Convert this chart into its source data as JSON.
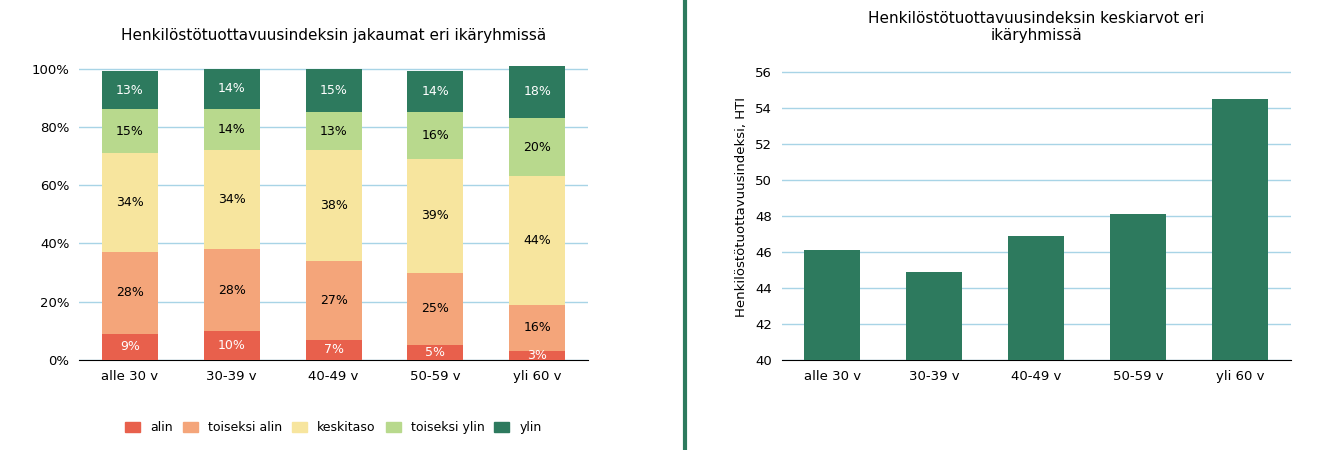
{
  "left_title": "Henkilöstötuottavuusindeksin jakaumat eri ikäryhmissä",
  "right_title": "Henkilöstötuottavuusindeksin keskiarvot eri\nikäryhmissä",
  "categories": [
    "alle 30 v",
    "30-39 v",
    "40-49 v",
    "50-59 v",
    "yli 60 v"
  ],
  "stacked_data": {
    "alin": [
      9,
      10,
      7,
      5,
      3
    ],
    "toiseksi alin": [
      28,
      28,
      27,
      25,
      16
    ],
    "keskitaso": [
      34,
      34,
      38,
      39,
      44
    ],
    "toiseksi ylin": [
      15,
      14,
      13,
      16,
      20
    ],
    "ylin": [
      13,
      14,
      15,
      14,
      18
    ]
  },
  "stack_colors": {
    "alin": "#e8604c",
    "toiseksi alin": "#f4a57a",
    "keskitaso": "#f7e59e",
    "toiseksi ylin": "#b8d98d",
    "ylin": "#2d7a5e"
  },
  "bar_values": [
    46.1,
    44.9,
    46.9,
    48.1,
    54.5
  ],
  "bar_color": "#2d7a5e",
  "right_ylabel": "Henkilöstötuottavuusindeksi, HTI",
  "right_ylim": [
    40,
    57
  ],
  "right_yticks": [
    40,
    42,
    44,
    46,
    48,
    50,
    52,
    54,
    56
  ],
  "left_yticks": [
    0,
    20,
    40,
    60,
    80,
    100
  ],
  "divider_color": "#2d7a5e",
  "grid_color": "#a8d4e6",
  "background_color": "#ffffff"
}
